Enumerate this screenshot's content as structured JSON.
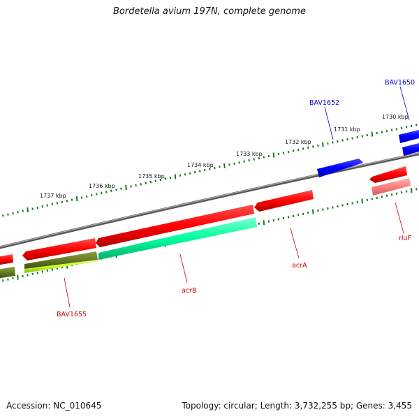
{
  "title": "Bordetella avium 197N, complete genome",
  "accession": "Accession: NC_010645",
  "summary": "Topology: circular; Length: 3,732,255 bp; Genes: 3,455",
  "colors": {
    "backbone": "#808080",
    "ticks": "#1a7a1a",
    "forward_gene": "#0000ff",
    "reverse_gene": "#ff0000",
    "reverse_label": "#cc0000",
    "forward_label": "#0000cc"
  },
  "scale_labels": [
    "1730 kbp",
    "1731 kbp",
    "1732 kbp",
    "1733 kbp",
    "1734 kbp",
    "1735 kbp",
    "1736 kbp",
    "1737 kbp"
  ],
  "gene_labels": {
    "BAV1650": "BAV1650",
    "BAV1652": "BAV1652",
    "rluF": "rluF",
    "acrA": "acrA",
    "acrB": "acrB",
    "BAV1655": "BAV1655"
  }
}
